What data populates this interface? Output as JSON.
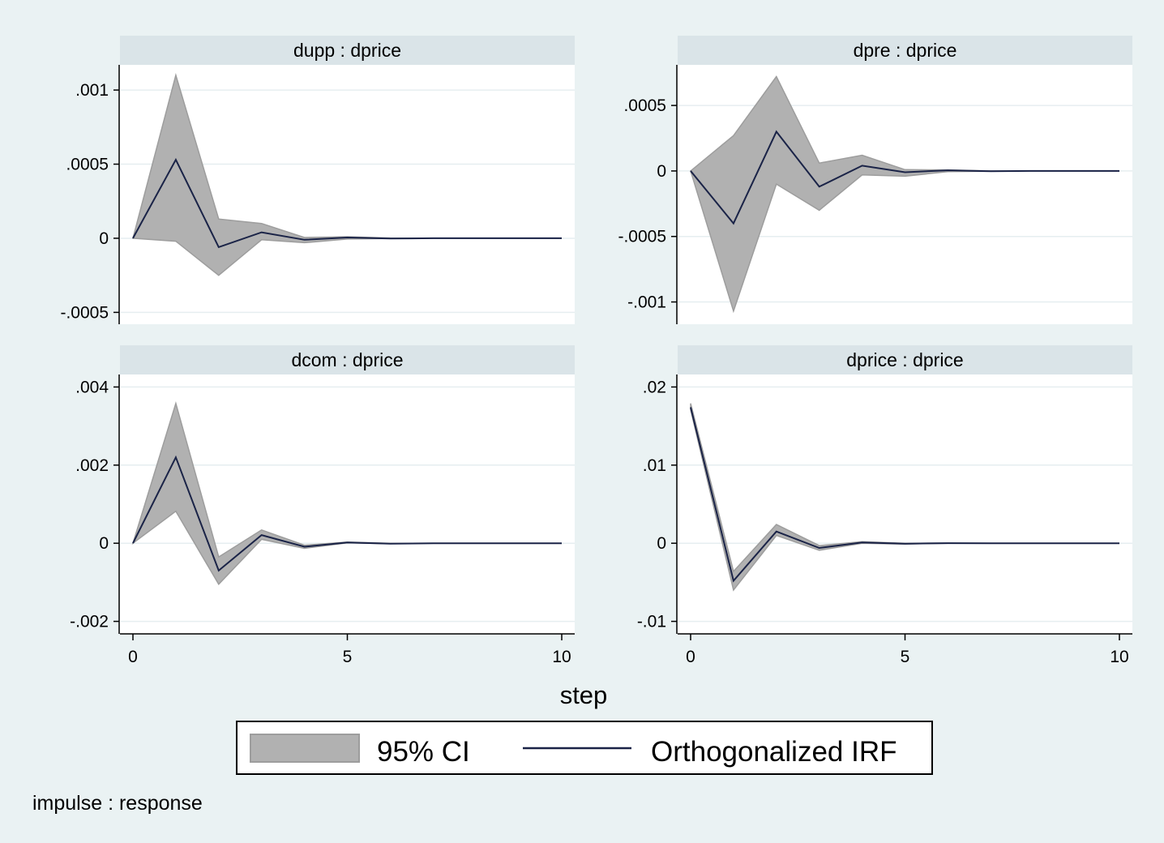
{
  "chart_data": [
    {
      "type": "line",
      "title": "dupp : dprice",
      "x": [
        0,
        1,
        2,
        3,
        4,
        5,
        6,
        7,
        8,
        9,
        10
      ],
      "xticks": [
        "0",
        "5",
        "10"
      ],
      "xlabel": "step",
      "ylim": [
        -0.00058,
        0.00117
      ],
      "yticks": [
        -0.0005,
        0,
        0.0005,
        0.001
      ],
      "ytick_labels": [
        "-.0005",
        "0",
        ".0005",
        ".001"
      ],
      "series": [
        {
          "name": "Orthogonalized IRF",
          "kind": "line",
          "values": [
            0,
            0.00053,
            -6e-05,
            4e-05,
            -1e-05,
            5e-06,
            -2e-06,
            0,
            0,
            0,
            0
          ]
        },
        {
          "name": "95% CI",
          "kind": "band",
          "lower": [
            0,
            -2e-05,
            -0.00025,
            -1e-05,
            -3e-05,
            -5e-06,
            -2e-06,
            0,
            0,
            0,
            0
          ],
          "upper": [
            0,
            0.0011,
            0.00013,
            0.0001,
            5e-06,
            1e-05,
            2e-06,
            0,
            0,
            0,
            0
          ]
        }
      ]
    },
    {
      "type": "line",
      "title": "dpre : dprice",
      "x": [
        0,
        1,
        2,
        3,
        4,
        5,
        6,
        7,
        8,
        9,
        10
      ],
      "xticks": [
        "0",
        "5",
        "10"
      ],
      "xlabel": "step",
      "ylim": [
        -0.00117,
        0.00081
      ],
      "yticks": [
        -0.001,
        -0.0005,
        0,
        0.0005
      ],
      "ytick_labels": [
        "-.001",
        "-.0005",
        "0",
        ".0005"
      ],
      "series": [
        {
          "name": "Orthogonalized IRF",
          "kind": "line",
          "values": [
            0,
            -0.0004,
            0.0003,
            -0.00012,
            4e-05,
            -1e-05,
            5e-06,
            -2e-06,
            0,
            0,
            0
          ]
        },
        {
          "name": "95% CI",
          "kind": "band",
          "lower": [
            0,
            -0.00107,
            -0.0001,
            -0.0003,
            -3e-05,
            -4e-05,
            -5e-06,
            -2e-06,
            0,
            0,
            0
          ],
          "upper": [
            0,
            0.00027,
            0.00072,
            6e-05,
            0.00012,
            1e-05,
            8e-06,
            0,
            0,
            0,
            0
          ]
        }
      ]
    },
    {
      "type": "line",
      "title": "dcom : dprice",
      "x": [
        0,
        1,
        2,
        3,
        4,
        5,
        6,
        7,
        8,
        9,
        10
      ],
      "xticks": [
        "0",
        "5",
        "10"
      ],
      "xlabel": "step",
      "ylim": [
        -0.00232,
        0.00432
      ],
      "yticks": [
        -0.002,
        0,
        0.002,
        0.004
      ],
      "ytick_labels": [
        "-.002",
        "0",
        ".002",
        ".004"
      ],
      "series": [
        {
          "name": "Orthogonalized IRF",
          "kind": "line",
          "values": [
            0,
            0.0022,
            -0.0007,
            0.00021,
            -9e-05,
            2e-05,
            -1e-05,
            0,
            0,
            0,
            0
          ]
        },
        {
          "name": "95% CI",
          "kind": "band",
          "lower": [
            0,
            0.00082,
            -0.00105,
            0.0001,
            -0.00013,
            1e-05,
            -1e-05,
            0,
            0,
            0,
            0
          ],
          "upper": [
            0,
            0.00358,
            -0.00035,
            0.00034,
            -5e-05,
            3e-05,
            0,
            0,
            0,
            0,
            0
          ]
        }
      ]
    },
    {
      "type": "line",
      "title": "dprice : dprice",
      "x": [
        0,
        1,
        2,
        3,
        4,
        5,
        6,
        7,
        8,
        9,
        10
      ],
      "xticks": [
        "0",
        "5",
        "10"
      ],
      "xlabel": "step",
      "ylim": [
        -0.0116,
        0.0216
      ],
      "yticks": [
        -0.01,
        0,
        0.01,
        0.02
      ],
      "ytick_labels": [
        "-.01",
        "0",
        ".01",
        ".02"
      ],
      "series": [
        {
          "name": "Orthogonalized IRF",
          "kind": "line",
          "values": [
            0.0174,
            -0.0048,
            0.0015,
            -0.0006,
            0.0001,
            -5e-05,
            1e-05,
            0,
            0,
            0,
            0
          ]
        },
        {
          "name": "95% CI",
          "kind": "band",
          "lower": [
            0.0171,
            -0.006,
            0.001,
            -0.0009,
            0,
            -0.0001,
            0,
            0,
            0,
            0,
            0
          ],
          "upper": [
            0.0179,
            -0.0036,
            0.0024,
            -0.0003,
            0.0002,
            0,
            2e-05,
            0,
            0,
            0,
            0
          ]
        }
      ]
    }
  ],
  "figure": {
    "xlabel": "step",
    "legend": {
      "placement": "bottom",
      "items": [
        {
          "name": "95% CI",
          "kind": "band"
        },
        {
          "name": "Orthogonalized IRF",
          "kind": "line"
        }
      ]
    },
    "note": "impulse : response",
    "colors": {
      "background": "#eaf2f3",
      "plot_background": "#ffffff",
      "title_strip": "#dae4e8",
      "grid": "#e6eef0",
      "band_fill": "#b1b1b1",
      "band_edge": "#9d9d9d",
      "line": "#1a2347"
    }
  }
}
